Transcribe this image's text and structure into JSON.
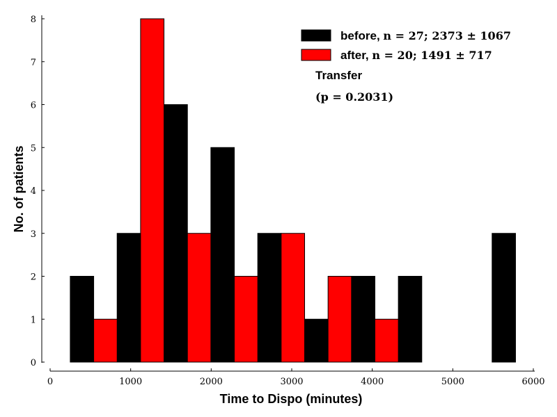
{
  "chart_data": {
    "type": "bar",
    "xlabel": "Time to Dispo (minutes)",
    "ylabel": "No. of patients",
    "xlim": [
      0,
      6000
    ],
    "ylim": [
      0,
      8
    ],
    "xticks": [
      "0",
      "1000",
      "2000",
      "3000",
      "4000",
      "5000",
      "6000"
    ],
    "yticks": [
      "0",
      "1",
      "2",
      "3",
      "4",
      "5",
      "6",
      "7",
      "8"
    ],
    "bin_edges": [
      250,
      832,
      1414,
      1996,
      2578,
      3160,
      3742,
      4324,
      4906,
      5488,
      6070
    ],
    "legend_position": "top-right",
    "series": [
      {
        "name": "before",
        "legend_stats": "n = 27; 2373 ± 1067",
        "color": "#000000",
        "values": [
          2,
          3,
          6,
          5,
          3,
          1,
          2,
          2,
          0,
          3
        ]
      },
      {
        "name": "after",
        "legend_stats": "n = 20; 1491 ± 717",
        "color": "#ff0000",
        "values": [
          1,
          8,
          3,
          2,
          3,
          2,
          1,
          0,
          0,
          0
        ]
      }
    ],
    "annotation_title": "Transfer",
    "annotation_pvalue": "(p = 0.2031)"
  }
}
